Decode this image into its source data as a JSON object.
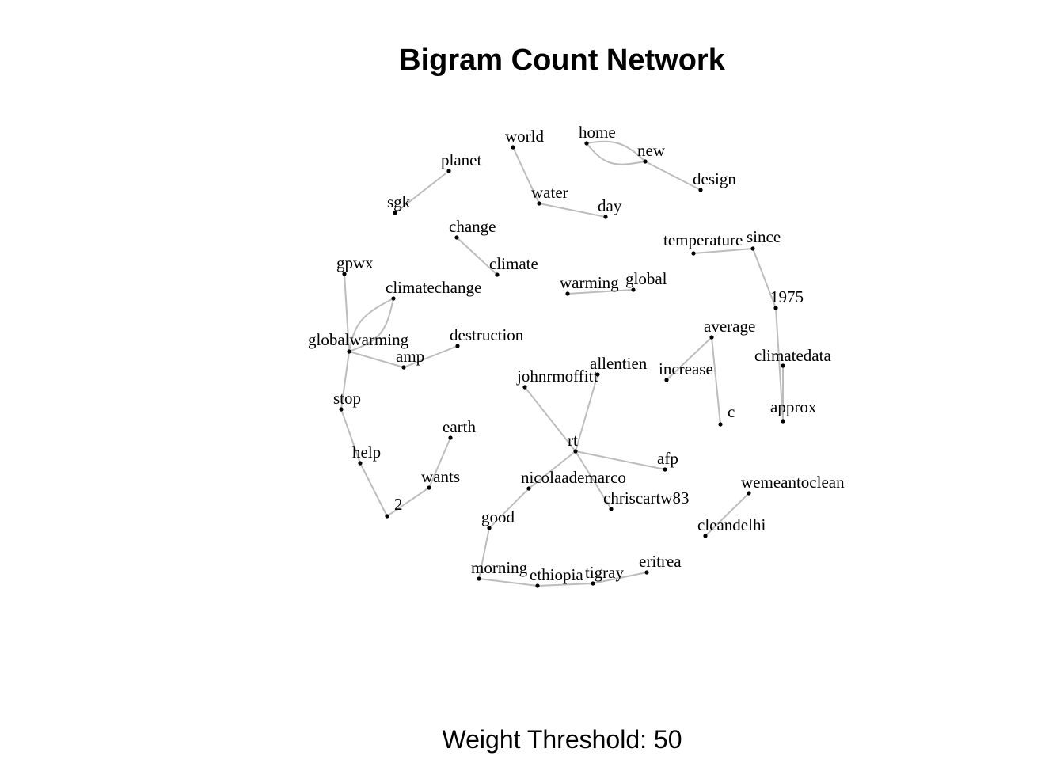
{
  "title": "Bigram Count Network",
  "caption": "Weight Threshold: 50",
  "graph": {
    "nodes": [
      {
        "id": "world"
      },
      {
        "id": "home"
      },
      {
        "id": "new"
      },
      {
        "id": "design"
      },
      {
        "id": "planet"
      },
      {
        "id": "sgk"
      },
      {
        "id": "water"
      },
      {
        "id": "day"
      },
      {
        "id": "change"
      },
      {
        "id": "climate"
      },
      {
        "id": "temperature"
      },
      {
        "id": "since"
      },
      {
        "id": "1975"
      },
      {
        "id": "gpwx"
      },
      {
        "id": "climatechange"
      },
      {
        "id": "warming"
      },
      {
        "id": "global"
      },
      {
        "id": "average"
      },
      {
        "id": "globalwarming"
      },
      {
        "id": "destruction"
      },
      {
        "id": "amp"
      },
      {
        "id": "allentien"
      },
      {
        "id": "increase"
      },
      {
        "id": "climatedata"
      },
      {
        "id": "johnrmoffitt"
      },
      {
        "id": "stop"
      },
      {
        "id": "c"
      },
      {
        "id": "approx"
      },
      {
        "id": "earth"
      },
      {
        "id": "rt"
      },
      {
        "id": "help"
      },
      {
        "id": "afp"
      },
      {
        "id": "wants"
      },
      {
        "id": "nicolaademarco"
      },
      {
        "id": "wemeantoclean"
      },
      {
        "id": "chriscartw83"
      },
      {
        "id": "2"
      },
      {
        "id": "good"
      },
      {
        "id": "cleandelhi"
      },
      {
        "id": "morning"
      },
      {
        "id": "ethiopia"
      },
      {
        "id": "tigray"
      },
      {
        "id": "eritrea"
      }
    ],
    "edges": [
      {
        "from": "world",
        "to": "water"
      },
      {
        "from": "water",
        "to": "day"
      },
      {
        "from": "home",
        "to": "new"
      },
      {
        "from": "new",
        "to": "home"
      },
      {
        "from": "new",
        "to": "design"
      },
      {
        "from": "planet",
        "to": "sgk"
      },
      {
        "from": "change",
        "to": "climate"
      },
      {
        "from": "temperature",
        "to": "since"
      },
      {
        "from": "since",
        "to": "1975"
      },
      {
        "from": "1975",
        "to": "approx"
      },
      {
        "from": "climatedata",
        "to": "approx"
      },
      {
        "from": "warming",
        "to": "global"
      },
      {
        "from": "average",
        "to": "increase"
      },
      {
        "from": "average",
        "to": "c"
      },
      {
        "from": "gpwx",
        "to": "globalwarming"
      },
      {
        "from": "climatechange",
        "to": "globalwarming"
      },
      {
        "from": "globalwarming",
        "to": "climatechange"
      },
      {
        "from": "globalwarming",
        "to": "amp"
      },
      {
        "from": "amp",
        "to": "destruction"
      },
      {
        "from": "globalwarming",
        "to": "stop"
      },
      {
        "from": "stop",
        "to": "help"
      },
      {
        "from": "help",
        "to": "2"
      },
      {
        "from": "2",
        "to": "wants"
      },
      {
        "from": "wants",
        "to": "earth"
      },
      {
        "from": "johnrmoffitt",
        "to": "rt"
      },
      {
        "from": "allentien",
        "to": "rt"
      },
      {
        "from": "rt",
        "to": "afp"
      },
      {
        "from": "rt",
        "to": "nicolaademarco"
      },
      {
        "from": "rt",
        "to": "chriscartw83"
      },
      {
        "from": "nicolaademarco",
        "to": "good"
      },
      {
        "from": "good",
        "to": "morning"
      },
      {
        "from": "morning",
        "to": "ethiopia"
      },
      {
        "from": "ethiopia",
        "to": "tigray"
      },
      {
        "from": "tigray",
        "to": "eritrea"
      },
      {
        "from": "wemeantoclean",
        "to": "cleandelhi"
      }
    ]
  }
}
